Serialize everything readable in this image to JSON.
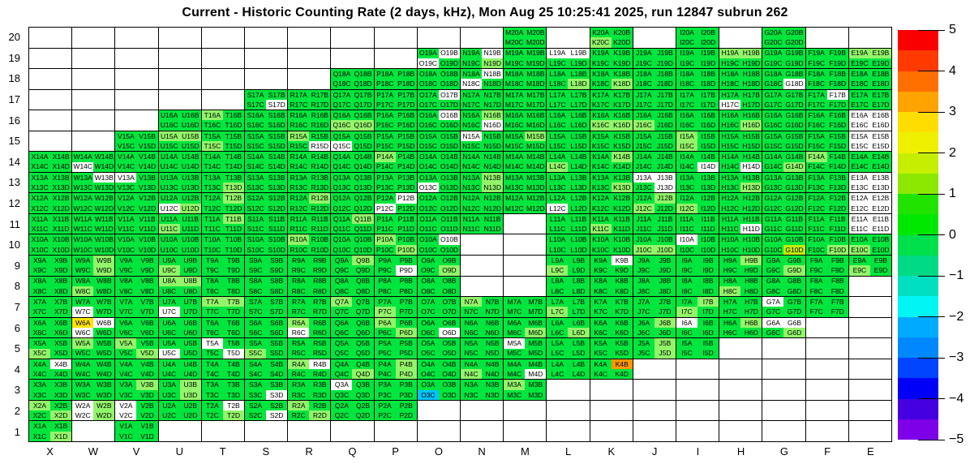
{
  "title": "Current - Historic Counting Rate (2 days, kHz), Mon Aug 25 10:25:41 2025, run 12847 subrun 262",
  "chart_data": {
    "type": "heatmap",
    "title": "Current - Historic Counting Rate (2 days, kHz), Mon Aug 25 10:25:41 2025, run 12847 subrun 262",
    "x_labels": [
      "X",
      "W",
      "V",
      "U",
      "T",
      "S",
      "R",
      "Q",
      "P",
      "O",
      "N",
      "M",
      "L",
      "K",
      "J",
      "I",
      "H",
      "G",
      "F",
      "E"
    ],
    "y_labels": [
      "20",
      "19",
      "18",
      "17",
      "16",
      "15",
      "14",
      "13",
      "12",
      "11",
      "10",
      "9",
      "8",
      "7",
      "6",
      "5",
      "4",
      "3",
      "2",
      "1"
    ],
    "quadrant_suffixes": [
      "A",
      "B",
      "C",
      "D"
    ],
    "palette": {
      "g": "#00e63e",
      "l": "#93f56a",
      "m": "#c3ee00",
      "y": "#ffe400",
      "o": "#ff9800",
      "c": "#00c3ff",
      "w": "#ffffff"
    },
    "colorbar": {
      "min": -5,
      "max": 5,
      "tick_labels": [
        "5",
        "4",
        "3",
        "2",
        "1",
        "0",
        "−1",
        "−2",
        "−3",
        "−4",
        "−5"
      ],
      "segments": [
        "#fa0000",
        "#ff3a00",
        "#ff6f00",
        "#ffa300",
        "#ffdd00",
        "#eef000",
        "#c6ef00",
        "#8ce800",
        "#20e400",
        "#00e800",
        "#00e04c",
        "#00da86",
        "#00e0c0",
        "#00f5f5",
        "#00aaff",
        "#0088ff",
        "#0044ff",
        "#0000f8",
        "#4400e0",
        "#7d00e8"
      ]
    },
    "cells": {
      "X": {
        "14": "gggg",
        "13": "gggg",
        "12": "gggg",
        "11": "gggg",
        "10": "gggg",
        "9": "gggg",
        "8": "gggg",
        "7": "gggg",
        "6": "gggg",
        "5": "gglg",
        "4": "gwgg",
        "3": "gggg",
        "2": "lggl",
        "1": "gggl"
      },
      "W": {
        "14": "ggwg",
        "13": "gwgg",
        "12": "gggg",
        "11": "gggg",
        "10": "gggg",
        "9": "glgl",
        "8": "gglg",
        "7": "ggwg",
        "6": "ywwg",
        "5": "lggg",
        "4": "gggg",
        "3": "gggg",
        "2": "wlwl"
      },
      "V": {
        "15": "gggg",
        "14": "gggg",
        "13": "wggg",
        "12": "gggg",
        "11": "gggg",
        "10": "gggg",
        "9": "gggg",
        "8": "gggg",
        "7": "gggg",
        "6": "gggg",
        "5": "lggl",
        "4": "gggg",
        "3": "glgg",
        "2": "wgwg",
        "1": "gggg"
      },
      "U": {
        "16": "gggg",
        "15": "llgg",
        "14": "gggg",
        "13": "gggg",
        "12": "ggwl",
        "11": "gglg",
        "10": "gggg",
        "9": "gglg",
        "8": "llgg",
        "7": "ggwg",
        "6": "gggg",
        "5": "ggwg",
        "4": "gggg",
        "3": "glgl",
        "2": "gggg"
      },
      "T": {
        "16": "lggg",
        "15": "gglg",
        "14": "gggg",
        "13": "gggl",
        "12": "glgg",
        "11": "glgg",
        "10": "gggg",
        "9": "gggg",
        "8": "gggg",
        "7": "llgg",
        "6": "gggg",
        "5": "wggw",
        "4": "gggg",
        "3": "gggg",
        "2": "gwgl"
      },
      "S": {
        "17": "gggw",
        "16": "gggg",
        "15": "gggg",
        "14": "gggg",
        "13": "gggg",
        "12": "gggg",
        "11": "gggg",
        "10": "gggg",
        "9": "gggg",
        "8": "gggg",
        "7": "gggg",
        "6": "gggg",
        "5": "gglg",
        "4": "gggg",
        "3": "gggw",
        "2": "gggw"
      },
      "R": {
        "17": "gggg",
        "16": "gggg",
        "15": "lggw",
        "14": "gggg",
        "13": "gggg",
        "12": "glgg",
        "11": "gggg",
        "10": "lggg",
        "9": "gggg",
        "8": "gggg",
        "7": "gggg",
        "6": "lgwg",
        "5": "gggg",
        "4": "lwgg",
        "3": "gggg",
        "2": "lggl"
      },
      "Q": {
        "18": "gggg",
        "17": "gggg",
        "16": "ggll",
        "15": "ggwg",
        "14": "gggg",
        "13": "gggg",
        "12": "gggg",
        "11": "glgg",
        "10": "gggg",
        "9": "glgg",
        "8": "gggg",
        "7": "lggg",
        "6": "gggg",
        "5": "gggg",
        "4": "gggl",
        "3": "wggg",
        "2": "gggg"
      },
      "P": {
        "18": "gggg",
        "17": "gggg",
        "16": "gggg",
        "15": "gggg",
        "14": "lggg",
        "13": "gggg",
        "12": "gwwg",
        "11": "gggg",
        "10": "lggl",
        "9": "gggw",
        "8": "gggg",
        "7": "gglg",
        "6": "lggl",
        "5": "gggg",
        "4": "glgl",
        "3": "gggg",
        "2": "gggg"
      },
      "O": {
        "19": "gwwg",
        "18": "gggg",
        "17": "gwgg",
        "16": "gwgg",
        "15": "gggg",
        "14": "gggg",
        "13": "ggwg",
        "12": "gggg",
        "11": "gggg",
        "10": "gwgg",
        "9": "gggl",
        "8": "gggg",
        "7": "gggg",
        "6": "gggw",
        "5": "gggg",
        "4": "gggg",
        "3": "ggcg"
      },
      "N": {
        "19": "gwgl",
        "18": "gwwg",
        "17": "gggg",
        "16": "glgw",
        "15": "wggg",
        "14": "gggg",
        "13": "glgl",
        "12": "gggg",
        "11": "gggg",
        "7": "lggg",
        "6": "gggg",
        "5": "gggg",
        "4": "gglg",
        "3": "gggg"
      },
      "M": {
        "20": "gggg",
        "19": "gggg",
        "18": "gggg",
        "17": "gggg",
        "16": "gggg",
        "15": "glgg",
        "14": "gggg",
        "13": "gggg",
        "12": "gggg",
        "7": "gggg",
        "6": "gggl",
        "5": "wggg",
        "4": "gggw",
        "3": "lggg"
      },
      "L": {
        "19": "wwgg",
        "18": "gggl",
        "17": "gggg",
        "16": "gggg",
        "15": "gggg",
        "14": "gglg",
        "13": "gggg",
        "12": "ggwg",
        "11": "gggg",
        "10": "gggg",
        "9": "gglg",
        "8": "gggg",
        "7": "gglg",
        "6": "gggl",
        "5": "gggg",
        "4": "gggg"
      },
      "K": {
        "20": "gglg",
        "19": "gggg",
        "18": "gggl",
        "17": "gggg",
        "16": "ggll",
        "15": "gggg",
        "14": "glgg",
        "13": "gggl",
        "12": "gggg",
        "11": "gglg",
        "10": "gggg",
        "9": "gwgg",
        "8": "gggg",
        "7": "gggg",
        "6": "gggg",
        "5": "gggg",
        "4": "gogg"
      },
      "J": {
        "19": "gggg",
        "18": "gggg",
        "17": "gggg",
        "16": "gglg",
        "15": "gggg",
        "14": "gggg",
        "13": "wwgw",
        "12": "gllg",
        "11": "gggg",
        "10": "ggll",
        "9": "gggg",
        "8": "gggg",
        "7": "gggg",
        "6": "glgg",
        "5": "glgl"
      },
      "I": {
        "20": "gggg",
        "19": "gggg",
        "18": "gggg",
        "17": "gggg",
        "16": "gggg",
        "15": "lglg",
        "14": "gggw",
        "13": "gggg",
        "12": "gglg",
        "11": "gggg",
        "10": "wggg",
        "9": "gggg",
        "8": "gggg",
        "7": "gllg",
        "6": "wggg",
        "5": "gggg"
      },
      "H": {
        "19": "llgg",
        "18": "gggg",
        "17": "ggwg",
        "16": "gggl",
        "15": "gggg",
        "14": "gggw",
        "13": "gggl",
        "12": "gggg",
        "11": "gggw",
        "10": "gggg",
        "9": "glgg",
        "8": "gglg",
        "7": "gggg",
        "6": "glgg"
      },
      "G": {
        "20": "gggg",
        "19": "gggg",
        "18": "gggw",
        "17": "gggg",
        "16": "gggg",
        "15": "gggg",
        "14": "gggl",
        "13": "gggg",
        "12": "gggg",
        "11": "gggg",
        "10": "gggm",
        "9": "gggl",
        "8": "gggg",
        "7": "wggg",
        "6": "wwgl"
      },
      "F": {
        "19": "gggg",
        "18": "gggg",
        "17": "gwgg",
        "16": "gggg",
        "15": "gggg",
        "14": "lggg",
        "13": "gggg",
        "12": "gggg",
        "11": "gggg",
        "10": "gggl",
        "9": "gggg",
        "8": "gggg",
        "7": "gggg"
      },
      "E": {
        "19": "llgg",
        "18": "gggg",
        "17": "gggg",
        "16": "wwww",
        "15": "wwww",
        "14": "gggg",
        "13": "wwww",
        "12": "wwww",
        "11": "wwww",
        "10": "gglg",
        "9": "gglg"
      }
    }
  }
}
